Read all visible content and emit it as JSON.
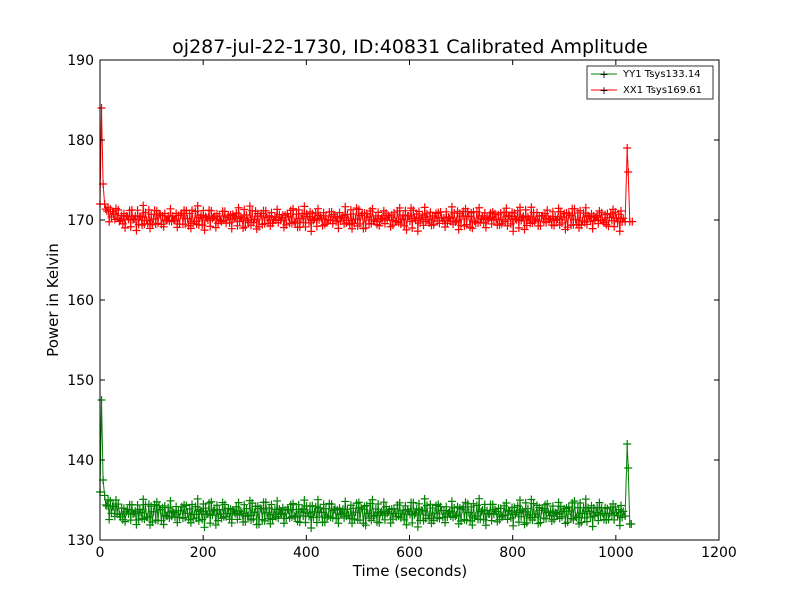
{
  "chart_data": {
    "type": "line",
    "title": "oj287-jul-22-1730, ID:40831 Calibrated Amplitude",
    "xlabel": "Time (seconds)",
    "ylabel": "Power in Kelvin",
    "xlim": [
      0,
      1200
    ],
    "ylim": [
      130,
      190
    ],
    "xticks": [
      0,
      200,
      400,
      600,
      800,
      1000,
      1200
    ],
    "yticks": [
      130,
      140,
      150,
      160,
      170,
      180,
      190
    ],
    "grid": false,
    "legend_position": "top-right",
    "series": [
      {
        "name": "YY1 Tsys133.14",
        "color": "#008000",
        "marker": "+",
        "spike_start": [
          [
            0,
            136
          ],
          [
            3,
            147.5
          ],
          [
            6,
            137.5
          ]
        ],
        "baseline": 133.4,
        "oscillation_amplitude": 1.4,
        "oscillation_period": 26,
        "spike_end": [
          [
            1018,
            133
          ],
          [
            1022,
            142
          ],
          [
            1024,
            139
          ],
          [
            1027,
            132
          ],
          [
            1030,
            132
          ]
        ],
        "x_end": 1015
      },
      {
        "name": "XX1 Tsys169.61",
        "color": "#ff0000",
        "marker": "+",
        "spike_start": [
          [
            0,
            172
          ],
          [
            3,
            184
          ],
          [
            6,
            174.5
          ]
        ],
        "baseline": 170.2,
        "oscillation_amplitude": 1.2,
        "oscillation_period": 26,
        "spike_end": [
          [
            1018,
            169.8
          ],
          [
            1022,
            179
          ],
          [
            1024,
            176
          ],
          [
            1027,
            169.8
          ],
          [
            1032,
            169.8
          ]
        ],
        "x_end": 1015
      }
    ]
  }
}
